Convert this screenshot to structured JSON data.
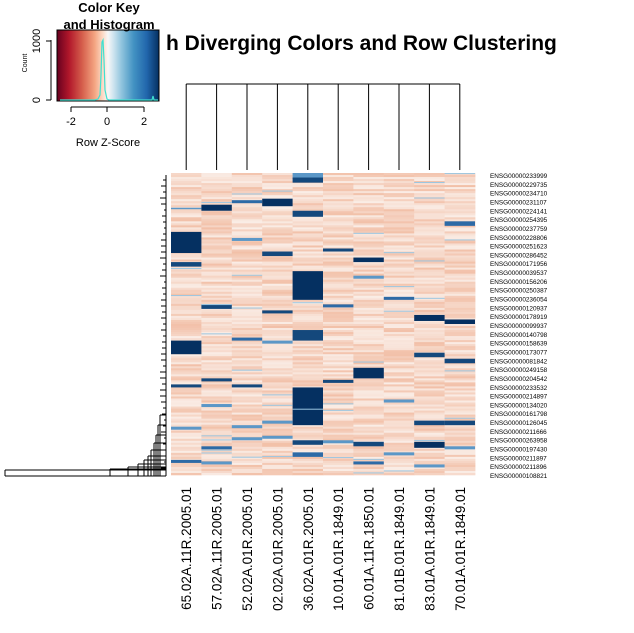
{
  "chart_data": {
    "type": "heatmap",
    "title": "h Diverging Colors and Row Clustering",
    "color_key": {
      "title_line1": "Color Key",
      "title_line2": "and Histogram",
      "xlabel": "Row Z-Score",
      "ylabel": "Count",
      "x_ticks": [
        "-2",
        "0",
        "2"
      ],
      "y_ticks": [
        "0",
        "1000"
      ],
      "x_range": [
        -3.2,
        3.2
      ],
      "palette": "RdBu diverging",
      "colors": {
        "low": "#67001f",
        "mid": "#f7f7f7",
        "high": "#053061",
        "histogram": "#40e0d0"
      }
    },
    "column_labels": [
      "65.02A.11R.2005.01",
      "57.02A.11R.2005.01",
      "52.02A.01R.2005.01",
      "02.02A.01R.2005.01",
      "36.02A.01R.2005.01",
      "10.01A.01R.1849.01",
      "60.01A.11R.1850.01",
      "81.01B.01R.1849.01",
      "83.01A.01R.1849.01",
      "70.01A.01R.1849.01"
    ],
    "row_labels": [
      "ENSG00000233999",
      "ENSG00000229735",
      "ENSG00000234710",
      "ENSG00000231107",
      "ENSG00000224141",
      "ENSG00000254395",
      "ENSG00000237759",
      "ENSG00000228806",
      "ENSG00000251623",
      "ENSG00000286452",
      "ENSG00000171956",
      "ENSG00000039537",
      "ENSG00000156206",
      "ENSG00000250387",
      "ENSG00000236054",
      "ENSG00000120937",
      "ENSG00000178919",
      "ENSG00000099937",
      "ENSG00000140798",
      "ENSG00000158639",
      "ENSG00000173077",
      "ENSG00000081842",
      "ENSG00000249158",
      "ENSG00000204542",
      "ENSG00000233532",
      "ENSG00000214897",
      "ENSG00000134020",
      "ENSG00000161798",
      "ENSG00000126045",
      "ENSG00000211666",
      "ENSG00000263958",
      "ENSG00000197430",
      "ENSG00000211897",
      "ENSG00000211896",
      "ENSG00000108821"
    ],
    "n_rows": 300,
    "highlights": [
      [
        4,
        0,
        0.02,
        0.015
      ],
      [
        4,
        0.015,
        0.032,
        0.9
      ],
      [
        4,
        0.125,
        0.145,
        0.9
      ],
      [
        4,
        0.325,
        0.42,
        1
      ],
      [
        4,
        0.52,
        0.555,
        0.9
      ],
      [
        4,
        0.71,
        0.835,
        1
      ],
      [
        4,
        0.885,
        0.9,
        0.9
      ],
      [
        4,
        0.925,
        0.94,
        0.8
      ],
      [
        0,
        0.195,
        0.265,
        1
      ],
      [
        0,
        0.295,
        0.31,
        0.9
      ],
      [
        0,
        0.555,
        0.6,
        1
      ],
      [
        0,
        0.7,
        0.71,
        0.9
      ],
      [
        0,
        0.84,
        0.85,
        0.6
      ],
      [
        0,
        0.95,
        0.96,
        0.8
      ],
      [
        0,
        0.115,
        0.12,
        0.6
      ],
      [
        1,
        0.105,
        0.125,
        1
      ],
      [
        1,
        0.435,
        0.45,
        0.9
      ],
      [
        1,
        0.68,
        0.69,
        0.9
      ],
      [
        1,
        0.765,
        0.775,
        0.7
      ],
      [
        1,
        0.905,
        0.915,
        0.8
      ],
      [
        1,
        0.955,
        0.965,
        0.7
      ],
      [
        2,
        0.09,
        0.1,
        0.8
      ],
      [
        2,
        0.215,
        0.225,
        0.6
      ],
      [
        2,
        0.545,
        0.555,
        0.8
      ],
      [
        2,
        0.7,
        0.71,
        0.9
      ],
      [
        2,
        0.835,
        0.845,
        0.7
      ],
      [
        2,
        0.875,
        0.885,
        0.7
      ],
      [
        3,
        0.085,
        0.11,
        1
      ],
      [
        3,
        0.26,
        0.275,
        0.9
      ],
      [
        3,
        0.455,
        0.465,
        0.9
      ],
      [
        3,
        0.555,
        0.565,
        0.7
      ],
      [
        3,
        0.82,
        0.83,
        0.7
      ],
      [
        3,
        0.87,
        0.88,
        0.6
      ],
      [
        5,
        0.25,
        0.26,
        0.9
      ],
      [
        5,
        0.435,
        0.445,
        0.8
      ],
      [
        5,
        0.685,
        0.695,
        0.9
      ],
      [
        5,
        0.885,
        0.895,
        0.7
      ],
      [
        6,
        0.28,
        0.295,
        1
      ],
      [
        6,
        0.645,
        0.68,
        1
      ],
      [
        6,
        0.89,
        0.905,
        0.9
      ],
      [
        6,
        0.955,
        0.965,
        0.8
      ],
      [
        6,
        0.34,
        0.35,
        0.6
      ],
      [
        7,
        0.41,
        0.42,
        0.8
      ],
      [
        7,
        0.75,
        0.76,
        0.7
      ],
      [
        7,
        0.925,
        0.935,
        0.7
      ],
      [
        8,
        0.47,
        0.49,
        1
      ],
      [
        8,
        0.595,
        0.61,
        0.9
      ],
      [
        8,
        0.82,
        0.835,
        0.9
      ],
      [
        8,
        0.89,
        0.91,
        1
      ],
      [
        8,
        0.965,
        0.975,
        0.7
      ],
      [
        9,
        0.16,
        0.175,
        0.8
      ],
      [
        9,
        0.485,
        0.5,
        1
      ],
      [
        9,
        0.615,
        0.63,
        0.9
      ],
      [
        9,
        0.82,
        0.835,
        0.9
      ],
      [
        9,
        0.905,
        0.915,
        0.6
      ]
    ]
  }
}
